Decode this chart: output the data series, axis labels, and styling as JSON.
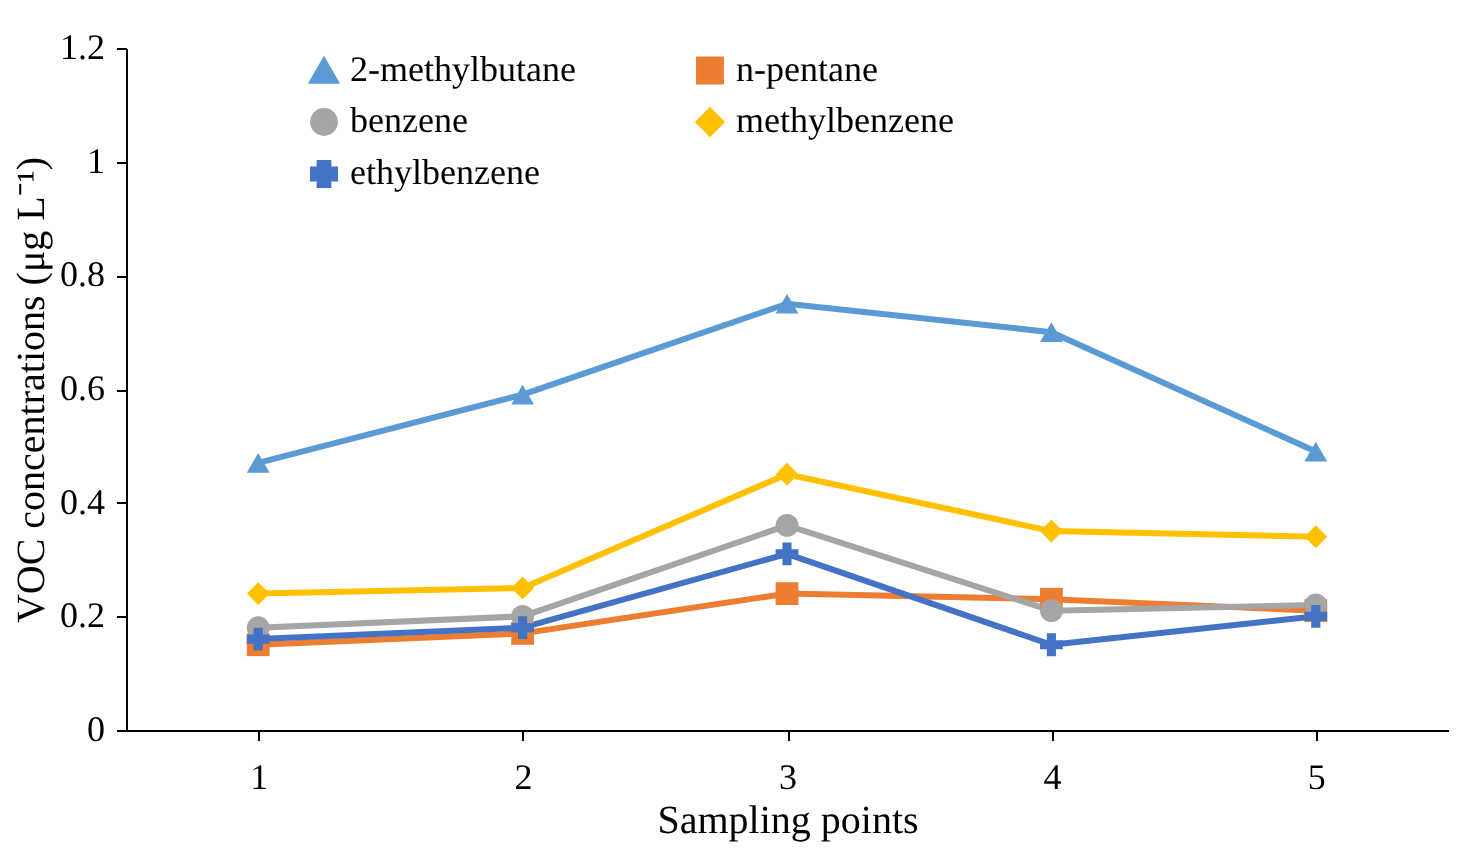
{
  "chart_data": {
    "type": "line",
    "xlabel": "Sampling points",
    "ylabel": "VOC concentrations (μg L⁻¹)",
    "categories": [
      "1",
      "2",
      "3",
      "4",
      "5"
    ],
    "series": [
      {
        "name": "2-methylbutane",
        "color": "#5b9bd5",
        "marker": "triangle",
        "values": [
          0.47,
          0.59,
          0.75,
          0.7,
          0.49
        ]
      },
      {
        "name": "n-pentane",
        "color": "#ed7d31",
        "marker": "square",
        "values": [
          0.15,
          0.17,
          0.24,
          0.23,
          0.21
        ]
      },
      {
        "name": "benzene",
        "color": "#a5a5a5",
        "marker": "circle",
        "values": [
          0.18,
          0.2,
          0.36,
          0.21,
          0.22
        ]
      },
      {
        "name": "methylbenzene",
        "color": "#ffc000",
        "marker": "diamond",
        "values": [
          0.24,
          0.25,
          0.45,
          0.35,
          0.34
        ]
      },
      {
        "name": "ethylbenzene",
        "color": "#4472c4",
        "marker": "cross",
        "values": [
          0.16,
          0.18,
          0.31,
          0.15,
          0.2
        ]
      }
    ],
    "ylim": [
      0,
      1.2
    ],
    "yticks": [
      0,
      0.2,
      0.4,
      0.6,
      0.8,
      1,
      1.2
    ],
    "grid": false,
    "legend": "top",
    "line_style": "solid"
  }
}
